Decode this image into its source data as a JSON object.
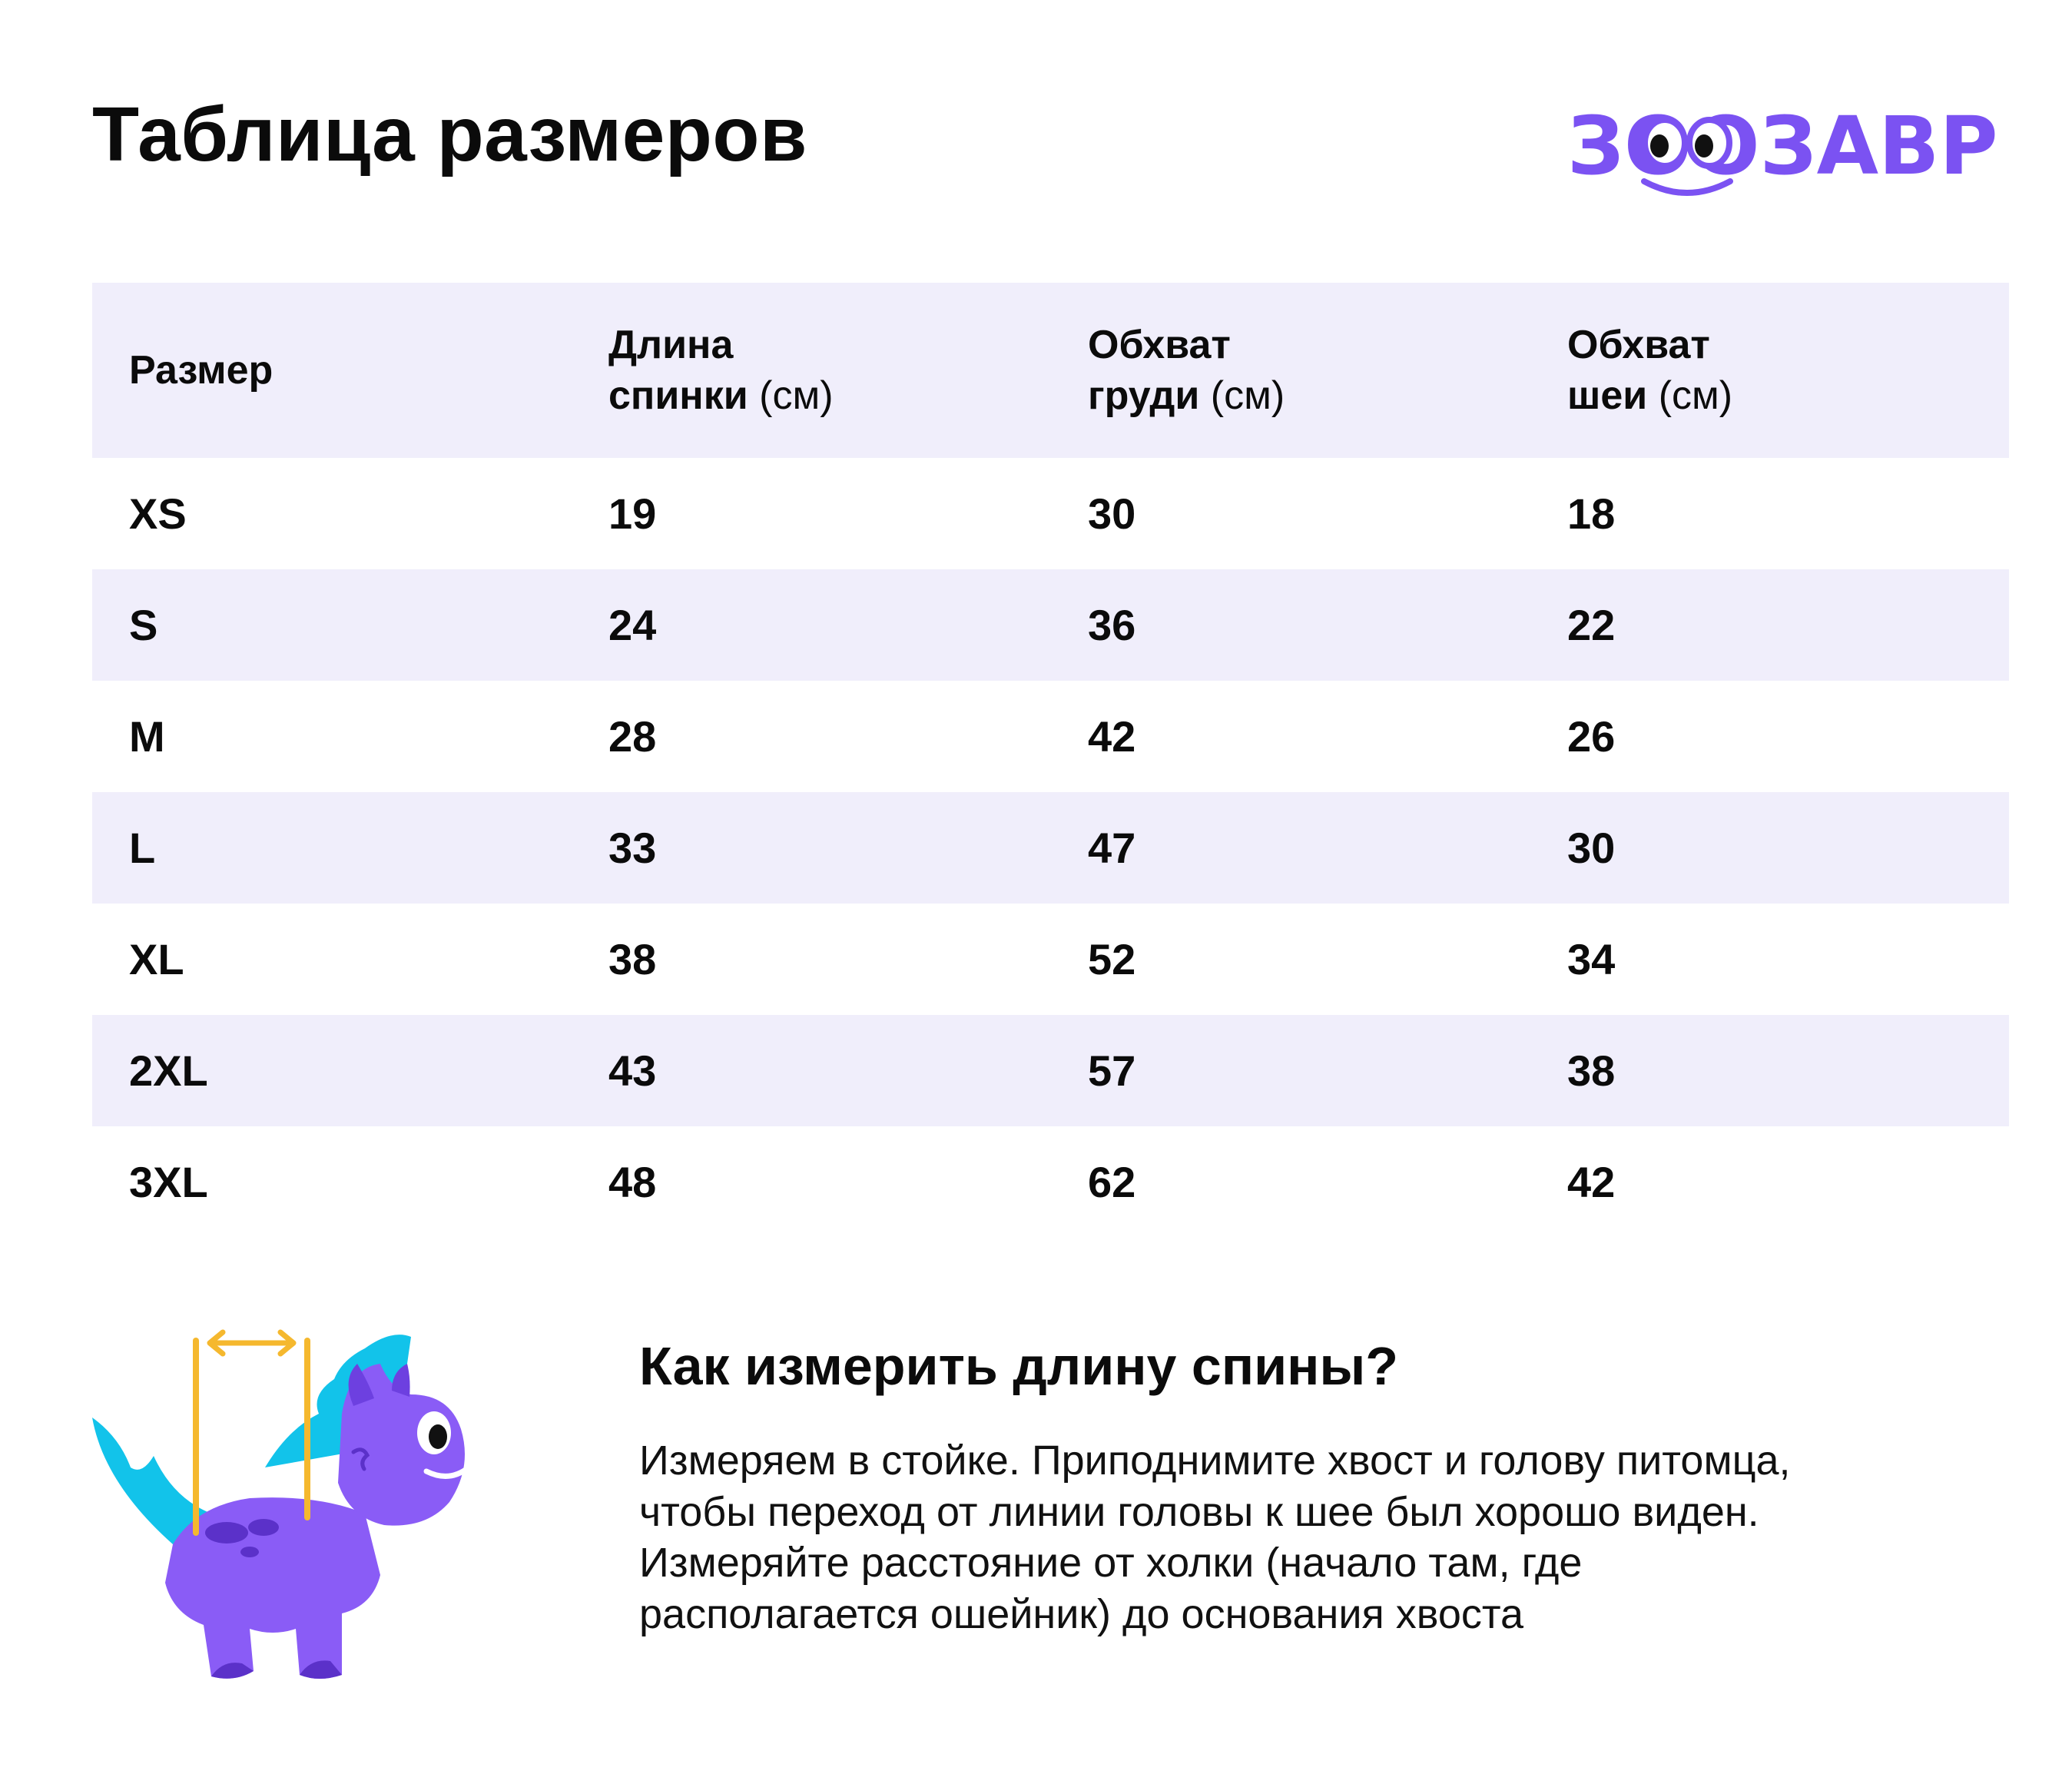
{
  "title": "Таблица размеров",
  "logo": {
    "text": "ЗООЗАВР",
    "color": "#7b52f2"
  },
  "table": {
    "headers": [
      {
        "line1": "Размер",
        "line2": "",
        "unit": ""
      },
      {
        "line1": "Длина",
        "line2": "спинки",
        "unit": "(см)"
      },
      {
        "line1": "Обхват",
        "line2": "груди",
        "unit": "(см)"
      },
      {
        "line1": "Обхват",
        "line2": "шеи",
        "unit": "(см)"
      }
    ],
    "rows": [
      [
        "XS",
        "19",
        "30",
        "18"
      ],
      [
        "S",
        "24",
        "36",
        "22"
      ],
      [
        "M",
        "28",
        "42",
        "26"
      ],
      [
        "L",
        "33",
        "47",
        "30"
      ],
      [
        "XL",
        "38",
        "52",
        "34"
      ],
      [
        "2XL",
        "43",
        "57",
        "38"
      ],
      [
        "3XL",
        "48",
        "62",
        "42"
      ]
    ]
  },
  "howto": {
    "title": "Как измерить длину спины?",
    "text": "Измеряем в стойке. Приподнимите хвост и голову питомца, чтобы переход от линии головы к шее был хорошо виден. Измеряйте расстояние от холки (начало там, где располагается ошейник) до основания хвоста"
  },
  "colors": {
    "row_stripe": "#f0eefb",
    "dino_body": "#8a5cf6",
    "dino_spikes": "#12c3ea",
    "measure_line": "#f5b82e"
  }
}
